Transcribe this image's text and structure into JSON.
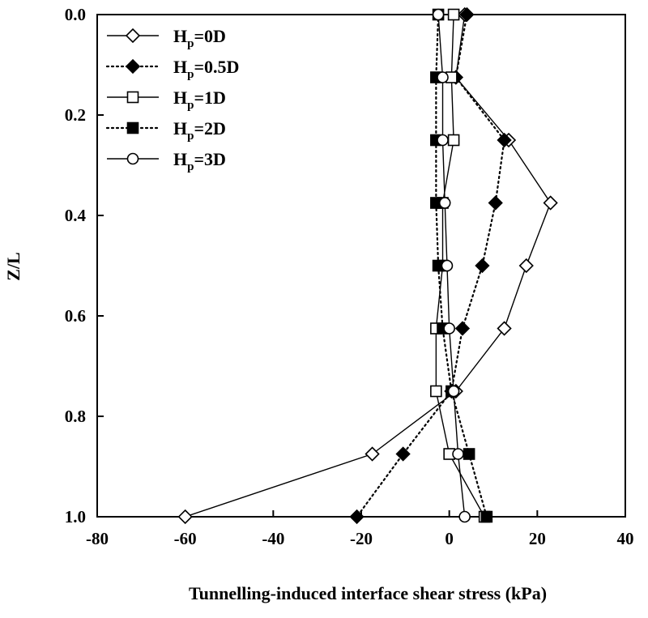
{
  "chart_data": {
    "type": "line",
    "title": "",
    "xlabel": "Tunnelling-induced interface shear stress (kPa)",
    "ylabel": "Z/L",
    "xlim": [
      -80,
      40
    ],
    "ylim": [
      0.0,
      1.0
    ],
    "y_inverted": true,
    "x_ticks": [
      -80,
      -60,
      -40,
      -20,
      0,
      20,
      40
    ],
    "y_ticks": [
      0.0,
      0.2,
      0.4,
      0.6,
      0.8,
      1.0
    ],
    "x_tick_labels": [
      "-80",
      "-60",
      "-40",
      "-20",
      "0",
      "20",
      "40"
    ],
    "y_tick_labels": [
      "0.0",
      "0.2",
      "0.4",
      "0.6",
      "0.8",
      "1.0"
    ],
    "grid": false,
    "legend_position": "top-left",
    "series": [
      {
        "name_main": "H",
        "name_sub": "p",
        "name_rest": "=0D",
        "marker": "diamond",
        "fill": "open",
        "line": "solid",
        "points": [
          [
            3.5,
            0.0
          ],
          [
            1.5,
            0.125
          ],
          [
            13.5,
            0.25
          ],
          [
            23,
            0.375
          ],
          [
            17.5,
            0.5
          ],
          [
            12.5,
            0.625
          ],
          [
            1.5,
            0.75
          ],
          [
            -17.5,
            0.875
          ],
          [
            -60,
            1.0
          ]
        ]
      },
      {
        "name_main": "H",
        "name_sub": "p",
        "name_rest": "=0.5D",
        "marker": "diamond",
        "fill": "filled",
        "line": "dotted",
        "points": [
          [
            4,
            0.0
          ],
          [
            1.5,
            0.125
          ],
          [
            12.5,
            0.25
          ],
          [
            10.5,
            0.375
          ],
          [
            7.5,
            0.5
          ],
          [
            3,
            0.625
          ],
          [
            0.5,
            0.75
          ],
          [
            -10.5,
            0.875
          ],
          [
            -21,
            1.0
          ]
        ]
      },
      {
        "name_main": "H",
        "name_sub": "p",
        "name_rest": "=1D",
        "marker": "square",
        "fill": "open",
        "line": "solid",
        "points": [
          [
            1,
            0.0
          ],
          [
            0.5,
            0.125
          ],
          [
            1,
            0.25
          ],
          [
            -1.5,
            0.375
          ],
          [
            -1.5,
            0.5
          ],
          [
            -3,
            0.625
          ],
          [
            -3,
            0.75
          ],
          [
            0,
            0.875
          ],
          [
            8,
            1.0
          ]
        ]
      },
      {
        "name_main": "H",
        "name_sub": "p",
        "name_rest": "=2D",
        "marker": "square",
        "fill": "filled",
        "line": "dotted",
        "points": [
          [
            -2.5,
            0.0
          ],
          [
            -3,
            0.125
          ],
          [
            -3,
            0.25
          ],
          [
            -3,
            0.375
          ],
          [
            -2.5,
            0.5
          ],
          [
            -1.5,
            0.625
          ],
          [
            0.5,
            0.75
          ],
          [
            4.5,
            0.875
          ],
          [
            8.5,
            1.0
          ]
        ]
      },
      {
        "name_main": "H",
        "name_sub": "p",
        "name_rest": "=3D",
        "marker": "circle",
        "fill": "open",
        "line": "solid",
        "points": [
          [
            -2.5,
            0.0
          ],
          [
            -1.5,
            0.125
          ],
          [
            -1.5,
            0.25
          ],
          [
            -1,
            0.375
          ],
          [
            -0.5,
            0.5
          ],
          [
            0,
            0.625
          ],
          [
            1,
            0.75
          ],
          [
            2,
            0.875
          ],
          [
            3.5,
            1.0
          ]
        ]
      }
    ]
  }
}
